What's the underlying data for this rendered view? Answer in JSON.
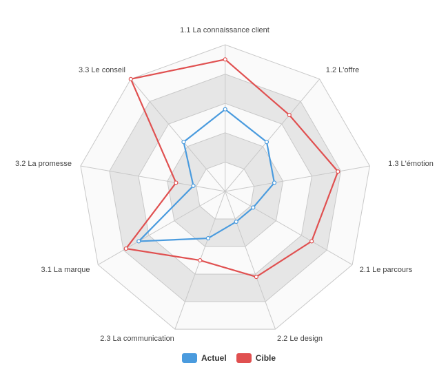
{
  "chart_data": {
    "type": "radar",
    "axes": [
      "1.1 La connaissance client",
      "1.2 L'offre",
      "1.3 L'émotion",
      "2.1 Le parcours",
      "2.2 Le design",
      "2.3 La communication",
      "3.1 La marque",
      "3.2 La promesse",
      "3.3 Le conseil"
    ],
    "rlim": [
      0,
      5
    ],
    "rings": 5,
    "grid": true,
    "legend": "bottom",
    "series": [
      {
        "name": "Actuel",
        "color": "#4a9bde",
        "values": [
          2.8,
          2.2,
          1.7,
          1.1,
          1.1,
          1.7,
          3.4,
          1.1,
          2.2
        ]
      },
      {
        "name": "Cible",
        "color": "#e05050",
        "values": [
          4.5,
          3.4,
          3.9,
          3.4,
          3.1,
          2.5,
          3.9,
          1.7,
          5.0
        ]
      }
    ]
  }
}
